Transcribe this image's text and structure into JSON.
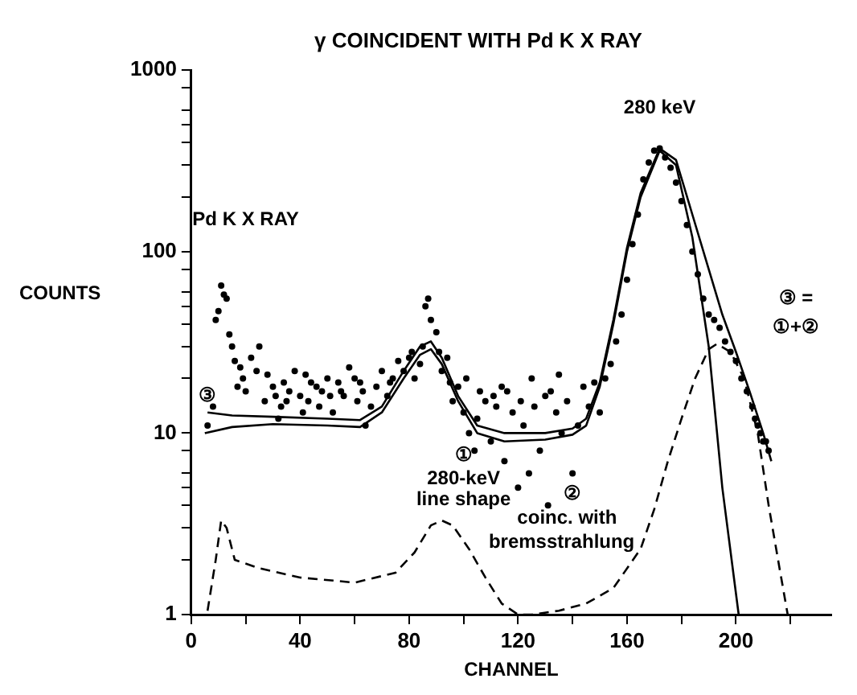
{
  "chart_data": {
    "type": "scatter",
    "title": "γ COINCIDENT WITH Pd K X RAY",
    "xlabel": "CHANNEL",
    "ylabel": "COUNTS",
    "log": "y",
    "grid": false,
    "legend": false,
    "xlim": [
      0,
      235
    ],
    "xticks": [
      0,
      {
        "value": 20,
        "label": null
      },
      40,
      {
        "value": 60,
        "label": null
      },
      80,
      {
        "value": 100,
        "label": null
      },
      120,
      {
        "value": 140,
        "label": null
      },
      160,
      {
        "value": 180,
        "label": null
      },
      200,
      {
        "value": 220,
        "label": null
      }
    ],
    "ylim": [
      1,
      1000
    ],
    "yticks": [
      1,
      {
        "value": 2,
        "label": null
      },
      {
        "value": 3,
        "label": null
      },
      {
        "value": 4,
        "label": null
      },
      {
        "value": 5,
        "label": null
      },
      {
        "value": 6,
        "label": null
      },
      {
        "value": 8,
        "label": null
      },
      10,
      {
        "value": 20,
        "label": null
      },
      {
        "value": 30,
        "label": null
      },
      {
        "value": 40,
        "label": null
      },
      {
        "value": 50,
        "label": null
      },
      {
        "value": 60,
        "label": null
      },
      {
        "value": 80,
        "label": null
      },
      100,
      {
        "value": 200,
        "label": null
      },
      {
        "value": 300,
        "label": null
      },
      {
        "value": 400,
        "label": null
      },
      {
        "value": 500,
        "label": null
      },
      {
        "value": 600,
        "label": null
      },
      {
        "value": 800,
        "label": null
      },
      1000
    ],
    "series": [
      {
        "marker": "circle",
        "color": "#000000",
        "x": [
          6,
          8,
          9,
          10,
          11,
          12,
          13,
          14,
          15,
          16,
          17,
          18,
          19,
          20,
          22,
          24,
          25,
          27,
          28,
          30,
          31,
          32,
          33,
          34,
          35,
          36,
          38,
          40,
          41,
          42,
          43,
          44,
          46,
          47,
          48,
          50,
          51,
          52,
          54,
          55,
          56,
          58,
          60,
          61,
          62,
          63,
          64,
          66,
          68,
          70,
          72,
          73,
          74,
          76,
          78,
          80,
          81,
          82,
          84,
          85,
          86,
          87,
          88,
          90,
          91,
          92,
          94,
          95,
          96,
          98,
          100,
          101,
          102,
          104,
          105,
          106,
          108,
          110,
          111,
          112,
          114,
          115,
          116,
          118,
          120,
          121,
          122,
          124,
          125,
          126,
          128,
          130,
          131,
          132,
          134,
          135,
          136,
          138,
          140,
          142,
          144,
          146,
          148,
          150,
          152,
          154,
          156,
          158,
          160,
          162,
          164,
          166,
          168,
          170,
          172,
          174,
          176,
          178,
          180,
          182,
          184,
          186,
          188,
          190,
          192,
          194,
          196,
          198,
          200,
          202,
          204,
          206,
          207,
          208,
          209,
          210,
          211,
          212
        ],
        "values": [
          11,
          14,
          42,
          47,
          65,
          58,
          55,
          35,
          30,
          25,
          18,
          23,
          20,
          17,
          26,
          22,
          30,
          15,
          21,
          18,
          16,
          12,
          14,
          19,
          15,
          17,
          22,
          16,
          13,
          21,
          15,
          19,
          18,
          14,
          17,
          20,
          16,
          13,
          19,
          17,
          16,
          23,
          20,
          15,
          19,
          17,
          11,
          14,
          18,
          22,
          16,
          19,
          20,
          25,
          22,
          26,
          28,
          20,
          24,
          30,
          50,
          55,
          42,
          36,
          28,
          22,
          26,
          19,
          15,
          18,
          13,
          20,
          10,
          8,
          12,
          17,
          15,
          9,
          16,
          14,
          18,
          7,
          17,
          13,
          5,
          15,
          11,
          6,
          20,
          14,
          8,
          16,
          4,
          17,
          13,
          21,
          10,
          15,
          6,
          11,
          18,
          14,
          19,
          13,
          20,
          24,
          32,
          45,
          70,
          110,
          160,
          250,
          310,
          360,
          370,
          330,
          290,
          240,
          190,
          140,
          100,
          75,
          55,
          45,
          42,
          38,
          32,
          28,
          25,
          20,
          17,
          14,
          12,
          11,
          10,
          9,
          9,
          8
        ]
      },
      {
        "type": "line",
        "marker": "none",
        "line_style": "solid",
        "color": "#000000",
        "x": [
          5,
          15,
          30,
          50,
          62,
          70,
          78,
          84,
          88,
          92,
          98,
          105,
          115,
          130,
          140,
          145,
          150,
          155,
          160,
          165,
          172,
          178,
          184,
          190,
          195,
          201
        ],
        "values": [
          10,
          10.8,
          11.2,
          11,
          10.8,
          13,
          20,
          27,
          29,
          24,
          15,
          10,
          9,
          9.2,
          9.8,
          11,
          18,
          40,
          100,
          200,
          360,
          300,
          120,
          30,
          5,
          1
        ]
      },
      {
        "type": "line",
        "marker": "none",
        "line_style": "solid",
        "color": "#000000",
        "x": [
          6,
          15,
          30,
          50,
          62,
          70,
          78,
          84,
          88,
          92,
          98,
          105,
          115,
          130,
          140,
          145,
          150,
          155,
          160,
          165,
          172,
          178,
          184,
          190,
          195,
          200,
          205,
          210,
          213
        ],
        "values": [
          13,
          12.5,
          12.3,
          12,
          11.8,
          14,
          22,
          30,
          32,
          26,
          16,
          11,
          10,
          10,
          10.6,
          12,
          19,
          42,
          105,
          210,
          370,
          320,
          160,
          80,
          45,
          28,
          17,
          10,
          7
        ]
      },
      {
        "type": "line",
        "marker": "none",
        "line_style": "dashed",
        "color": "#000000",
        "x": [
          6,
          9,
          11,
          13,
          16,
          25,
          40,
          60,
          75,
          82,
          88,
          92,
          96,
          102,
          108,
          114,
          120,
          125,
          135,
          145,
          155,
          165,
          170,
          175,
          180,
          185,
          190,
          193,
          198,
          203,
          208,
          212,
          216,
          219
        ],
        "values": [
          1.05,
          2,
          3.3,
          3,
          2,
          1.8,
          1.6,
          1.5,
          1.7,
          2.2,
          3.1,
          3.3,
          3.1,
          2.3,
          1.6,
          1.15,
          1,
          1,
          1.05,
          1.15,
          1.4,
          2.3,
          3.8,
          7,
          12,
          20,
          29,
          31,
          28,
          20,
          10,
          4,
          1.8,
          1
        ]
      }
    ],
    "annotations": [
      "Pd K X RAY",
      "280 keV",
      "③",
      "①",
      "280-keV",
      "line shape",
      "②",
      "coinc. with",
      "bremsstrahlung",
      "③ =",
      "①+②"
    ]
  }
}
